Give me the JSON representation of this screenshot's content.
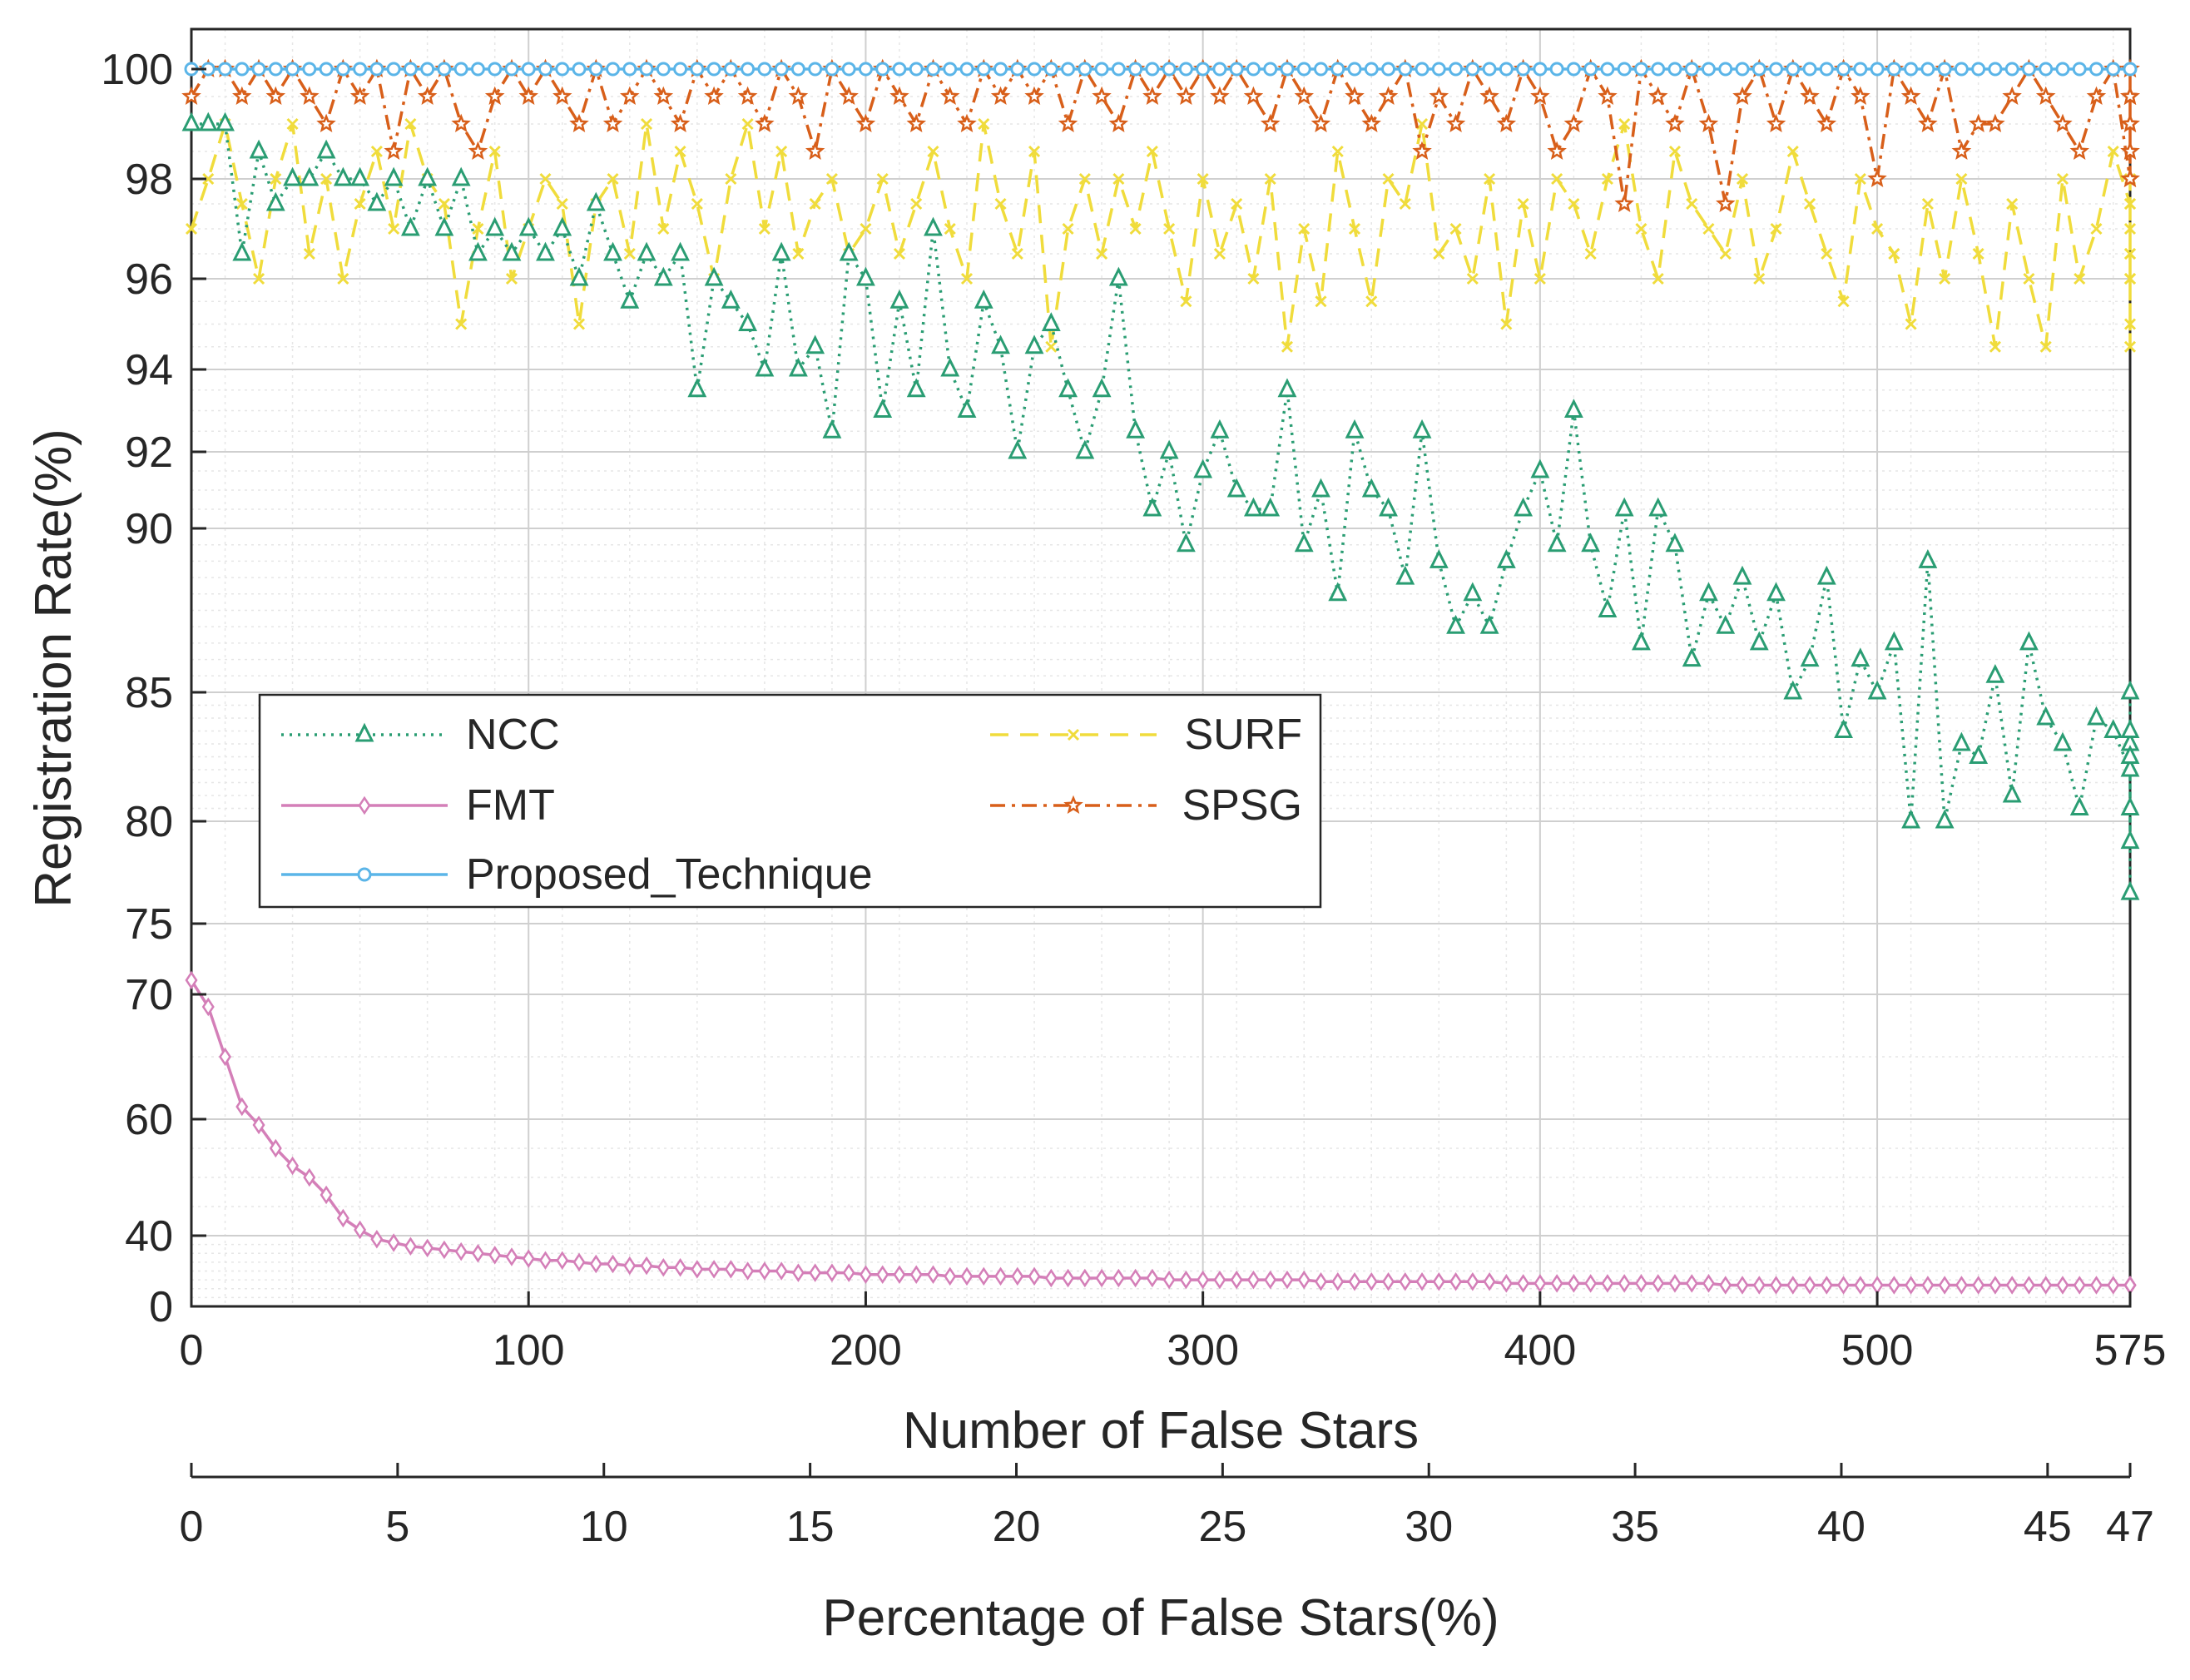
{
  "chart_data": {
    "type": "line",
    "title": "",
    "xlabel": "Number of False Stars",
    "x2label": "Percentage of False Stars(%)",
    "ylabel": "Registration Rate(%)",
    "xlim": [
      0,
      575
    ],
    "x_ticks": [
      0,
      100,
      200,
      300,
      400,
      500,
      575
    ],
    "x2_ticks": [
      0,
      5,
      10,
      15,
      20,
      25,
      30,
      35,
      40,
      45,
      47
    ],
    "y_tick_labels": [
      "0",
      "40",
      "60",
      "70",
      "75",
      "80",
      "85",
      "90",
      "92",
      "94",
      "96",
      "98",
      "100"
    ],
    "y_scale": "nonlinear (compressed low range, expanded high range)",
    "grid": true,
    "legend_location": "center-left",
    "x_sample_step": 5,
    "series": [
      {
        "name": "NCC",
        "color": "#2a9d73",
        "line_style": "dotted",
        "marker": "triangle",
        "values": [
          99,
          99,
          99,
          96.5,
          98.5,
          97.5,
          98,
          98,
          98.5,
          98,
          98,
          97.5,
          98,
          97,
          98,
          97,
          98,
          96.5,
          97,
          96.5,
          97,
          96.5,
          97,
          96,
          97.5,
          96.5,
          95.5,
          96.5,
          96,
          96.5,
          93.5,
          96,
          95.5,
          95,
          94,
          96.5,
          94,
          94.5,
          92.5,
          96.5,
          96,
          93,
          95.5,
          93.5,
          97,
          94,
          93,
          95.5,
          94.5,
          92,
          94.5,
          95,
          93.5,
          92,
          93.5,
          96,
          92.5,
          90.5,
          92,
          89.5,
          91.5,
          92.5,
          91,
          90.5,
          90.5,
          93.5,
          89.5,
          91,
          88,
          92.5,
          91,
          90.5,
          88.5,
          92.5,
          89,
          87,
          88,
          87,
          89,
          90.5,
          91.5,
          89.5,
          93,
          89.5,
          87.5,
          90.5,
          86.5,
          90.5,
          89.5,
          86,
          88,
          87,
          88.5,
          86.5,
          88,
          85,
          86,
          88.5,
          83.5,
          86,
          85,
          86.5,
          80,
          89,
          80,
          83,
          82.5,
          85.5,
          81,
          86.5,
          84,
          83,
          80.5,
          84,
          83.5,
          82,
          83,
          85,
          79,
          82.5,
          76.5,
          80.5,
          83.5
        ]
      },
      {
        "name": "FMT",
        "color": "#d47fb8",
        "line_style": "solid",
        "marker": "diamond",
        "values": [
          71,
          69,
          65,
          61,
          59,
          55,
          52,
          50,
          47,
          43,
          41,
          38,
          36,
          34,
          33,
          32,
          31,
          30,
          29,
          28,
          27,
          26,
          26,
          25,
          24,
          24,
          23,
          23,
          22,
          22,
          21,
          21,
          21,
          20,
          20,
          20,
          19,
          19,
          19,
          19,
          18,
          18,
          18,
          18,
          18,
          17,
          17,
          17,
          17,
          17,
          17,
          16,
          16,
          16,
          16,
          16,
          16,
          16,
          15,
          15,
          15,
          15,
          15,
          15,
          15,
          15,
          15,
          14,
          14,
          14,
          14,
          14,
          14,
          14,
          14,
          14,
          14,
          14,
          13,
          13,
          13,
          13,
          13,
          13,
          13,
          13,
          13,
          13,
          13,
          13,
          13,
          12,
          12,
          12,
          12,
          12,
          12,
          12,
          12,
          12,
          12,
          12,
          12,
          12,
          12,
          12,
          12,
          12,
          12,
          12,
          12,
          12,
          12,
          12,
          12,
          12,
          12,
          12,
          12,
          12,
          12,
          12,
          12,
          12,
          12,
          12
        ]
      },
      {
        "name": "Proposed_Technique",
        "color": "#5bb5e8",
        "line_style": "solid",
        "marker": "circle",
        "values": [
          100,
          100,
          100,
          100,
          100,
          100,
          100,
          100,
          100,
          100,
          100,
          100,
          100,
          100,
          100,
          100,
          100,
          100,
          100,
          100,
          100,
          100,
          100,
          100,
          100,
          100,
          100,
          100,
          100,
          100,
          100,
          100,
          100,
          100,
          100,
          100,
          100,
          100,
          100,
          100,
          100,
          100,
          100,
          100,
          100,
          100,
          100,
          100,
          100,
          100,
          100,
          100,
          100,
          100,
          100,
          100,
          100,
          100,
          100,
          100,
          100,
          100,
          100,
          100,
          100,
          100,
          100,
          100,
          100,
          100,
          100,
          100,
          100,
          100,
          100,
          100,
          100,
          100,
          100,
          100,
          100,
          100,
          100,
          100,
          100,
          100,
          100,
          100,
          100,
          100,
          100,
          100,
          100,
          100,
          100,
          100,
          100,
          100,
          100,
          100,
          100,
          100,
          100,
          100,
          100,
          100,
          100,
          100,
          100,
          100,
          100,
          100,
          100,
          100,
          100,
          100
        ]
      },
      {
        "name": "SURF",
        "color": "#f0dc3c",
        "line_style": "dashed",
        "marker": "x",
        "values": [
          97,
          98,
          99,
          97.5,
          96,
          98,
          99,
          96.5,
          98,
          96,
          97.5,
          98.5,
          97,
          99,
          98,
          97.5,
          95,
          97,
          98.5,
          96,
          97,
          98,
          97.5,
          95,
          97.5,
          98,
          96.5,
          99,
          97,
          98.5,
          97.5,
          96,
          98,
          99,
          97,
          98.5,
          96.5,
          97.5,
          98,
          96.5,
          97,
          98,
          96.5,
          97.5,
          98.5,
          97,
          96,
          99,
          97.5,
          96.5,
          98.5,
          94.5,
          97,
          98,
          96.5,
          98,
          97,
          98.5,
          97,
          95.5,
          98,
          96.5,
          97.5,
          96,
          98,
          94.5,
          97,
          95.5,
          98.5,
          97,
          95.5,
          98,
          97.5,
          99,
          96.5,
          97,
          96,
          98,
          95,
          97.5,
          96,
          98,
          97.5,
          96.5,
          98,
          99,
          97,
          96,
          98.5,
          97.5,
          97,
          96.5,
          98,
          96,
          97,
          98.5,
          97.5,
          96.5,
          95.5,
          98,
          97,
          96.5,
          95,
          97.5,
          96,
          98,
          96.5,
          94.5,
          97.5,
          96,
          94.5,
          98,
          96,
          97,
          98.5,
          97.5,
          96,
          97,
          98,
          96.5,
          97.5,
          94.5,
          96,
          96.5,
          95
        ]
      },
      {
        "name": "SPSG",
        "color": "#d85f1a",
        "line_style": "dashdot",
        "marker": "star",
        "values": [
          99.5,
          100,
          100,
          99.5,
          100,
          99.5,
          100,
          99.5,
          99,
          100,
          99.5,
          100,
          98.5,
          100,
          99.5,
          100,
          99,
          98.5,
          99.5,
          100,
          99.5,
          100,
          99.5,
          99,
          100,
          99,
          99.5,
          100,
          99.5,
          99,
          100,
          99.5,
          100,
          99.5,
          99,
          100,
          99.5,
          98.5,
          100,
          99.5,
          99,
          100,
          99.5,
          99,
          100,
          99.5,
          99,
          100,
          99.5,
          100,
          99.5,
          100,
          99,
          100,
          99.5,
          99,
          100,
          99.5,
          100,
          99.5,
          100,
          99.5,
          100,
          99.5,
          99,
          100,
          99.5,
          99,
          100,
          99.5,
          99,
          99.5,
          100,
          98.5,
          99.5,
          99,
          100,
          99.5,
          99,
          100,
          99.5,
          98.5,
          99,
          100,
          99.5,
          97.5,
          100,
          99.5,
          99,
          100,
          99,
          97.5,
          99.5,
          100,
          99,
          100,
          99.5,
          99,
          100,
          99.5,
          98,
          100,
          99.5,
          99,
          100,
          98.5,
          99,
          99,
          99.5,
          100,
          99.5,
          99,
          98.5,
          99.5,
          100,
          98,
          99.5,
          99,
          100,
          99.5,
          98.5,
          100,
          99.5,
          99,
          98
        ]
      }
    ]
  }
}
